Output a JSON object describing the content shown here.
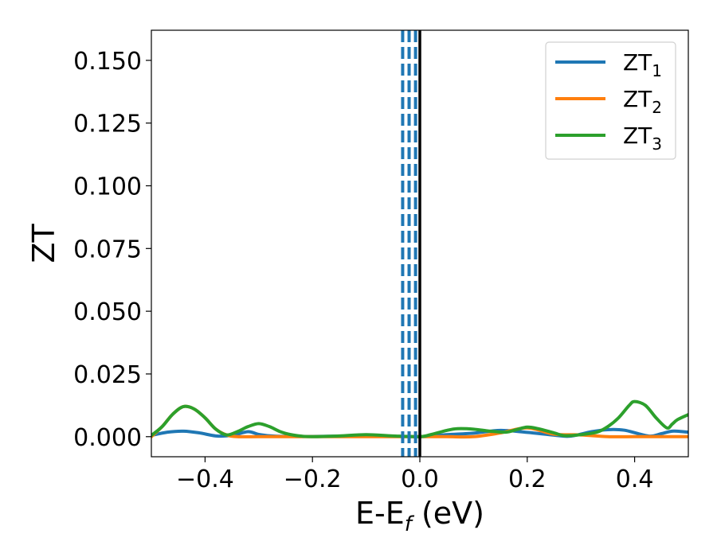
{
  "chart_data": {
    "type": "line",
    "xlabel": {
      "main": "E-E",
      "sub": "f",
      "rest": " (eV)"
    },
    "ylabel": "ZT",
    "xlim": [
      -0.5,
      0.5
    ],
    "ylim": [
      -0.008,
      0.162
    ],
    "x_ticks": [
      -0.4,
      -0.2,
      0.0,
      0.2,
      0.4
    ],
    "x_tick_labels": [
      "−0.4",
      "−0.2",
      "0.0",
      "0.2",
      "0.4"
    ],
    "y_ticks": [
      0.0,
      0.025,
      0.05,
      0.075,
      0.1,
      0.125,
      0.15
    ],
    "y_tick_labels": [
      "0.000",
      "0.025",
      "0.050",
      "0.075",
      "0.100",
      "0.125",
      "0.150"
    ],
    "grid": false,
    "legend_position": "top-right",
    "vertical_lines": [
      {
        "x": -0.032,
        "style": "dashed",
        "color": "#1f77b4"
      },
      {
        "x": -0.02,
        "style": "dashed",
        "color": "#1f77b4"
      },
      {
        "x": -0.008,
        "style": "dashed",
        "color": "#1f77b4"
      },
      {
        "x": 0.0,
        "style": "solid",
        "color": "#000000"
      }
    ],
    "series": [
      {
        "name": "ZT",
        "sub": "1",
        "color": "#1f77b4",
        "points": [
          [
            -0.5,
            0.0005
          ],
          [
            -0.47,
            0.0018
          ],
          [
            -0.44,
            0.0022
          ],
          [
            -0.41,
            0.0015
          ],
          [
            -0.38,
            0.0003
          ],
          [
            -0.35,
            0.0005
          ],
          [
            -0.32,
            0.002
          ],
          [
            -0.3,
            0.0009
          ],
          [
            -0.27,
            0.0002
          ],
          [
            -0.2,
            0.0001
          ],
          [
            -0.1,
            0.0003
          ],
          [
            0.0,
            0.0
          ],
          [
            0.05,
            0.0008
          ],
          [
            0.1,
            0.0014
          ],
          [
            0.15,
            0.0025
          ],
          [
            0.2,
            0.0017
          ],
          [
            0.25,
            0.0006
          ],
          [
            0.28,
            0.0002
          ],
          [
            0.32,
            0.002
          ],
          [
            0.35,
            0.0028
          ],
          [
            0.38,
            0.0026
          ],
          [
            0.41,
            0.001
          ],
          [
            0.43,
            0.0002
          ],
          [
            0.45,
            0.0012
          ],
          [
            0.47,
            0.0022
          ],
          [
            0.49,
            0.002
          ],
          [
            0.5,
            0.0018
          ]
        ]
      },
      {
        "name": "ZT",
        "sub": "2",
        "color": "#ff7f0e",
        "points": [
          [
            -0.5,
            0.0
          ],
          [
            -0.48,
            0.004
          ],
          [
            -0.46,
            0.009
          ],
          [
            -0.44,
            0.012
          ],
          [
            -0.42,
            0.011
          ],
          [
            -0.4,
            0.0075
          ],
          [
            -0.38,
            0.003
          ],
          [
            -0.36,
            0.0007
          ],
          [
            -0.34,
            0.0
          ],
          [
            -0.3,
            0.0
          ],
          [
            -0.25,
            0.0
          ],
          [
            -0.2,
            0.0
          ],
          [
            -0.15,
            0.0
          ],
          [
            -0.1,
            0.0
          ],
          [
            -0.05,
            0.0
          ],
          [
            0.0,
            0.0
          ],
          [
            0.05,
            0.0
          ],
          [
            0.1,
            0.0
          ],
          [
            0.15,
            0.0015
          ],
          [
            0.2,
            0.0035
          ],
          [
            0.25,
            0.001
          ],
          [
            0.3,
            0.0007
          ],
          [
            0.35,
            0.0
          ],
          [
            0.4,
            0.0
          ],
          [
            0.45,
            0.0
          ],
          [
            0.5,
            0.0
          ]
        ]
      },
      {
        "name": "ZT",
        "sub": "3",
        "color": "#2ca02c",
        "points": [
          [
            -0.5,
            0.0005
          ],
          [
            -0.48,
            0.004
          ],
          [
            -0.46,
            0.009
          ],
          [
            -0.44,
            0.012
          ],
          [
            -0.42,
            0.011
          ],
          [
            -0.4,
            0.0075
          ],
          [
            -0.38,
            0.003
          ],
          [
            -0.36,
            0.0007
          ],
          [
            -0.34,
            0.002
          ],
          [
            -0.32,
            0.004
          ],
          [
            -0.3,
            0.0052
          ],
          [
            -0.28,
            0.004
          ],
          [
            -0.26,
            0.002
          ],
          [
            -0.24,
            0.0008
          ],
          [
            -0.22,
            0.0002
          ],
          [
            -0.2,
            0.0
          ],
          [
            -0.15,
            0.0003
          ],
          [
            -0.1,
            0.0008
          ],
          [
            -0.05,
            0.0003
          ],
          [
            0.0,
            0.0
          ],
          [
            0.02,
            0.0008
          ],
          [
            0.05,
            0.0025
          ],
          [
            0.07,
            0.0032
          ],
          [
            0.1,
            0.003
          ],
          [
            0.13,
            0.0022
          ],
          [
            0.16,
            0.0018
          ],
          [
            0.18,
            0.0028
          ],
          [
            0.2,
            0.0038
          ],
          [
            0.22,
            0.0032
          ],
          [
            0.25,
            0.0015
          ],
          [
            0.27,
            0.0004
          ],
          [
            0.3,
            0.0008
          ],
          [
            0.33,
            0.0018
          ],
          [
            0.35,
            0.004
          ],
          [
            0.37,
            0.0075
          ],
          [
            0.39,
            0.0125
          ],
          [
            0.4,
            0.014
          ],
          [
            0.42,
            0.0125
          ],
          [
            0.44,
            0.0075
          ],
          [
            0.46,
            0.0035
          ],
          [
            0.47,
            0.005
          ],
          [
            0.48,
            0.0068
          ],
          [
            0.5,
            0.0088
          ]
        ]
      }
    ]
  }
}
